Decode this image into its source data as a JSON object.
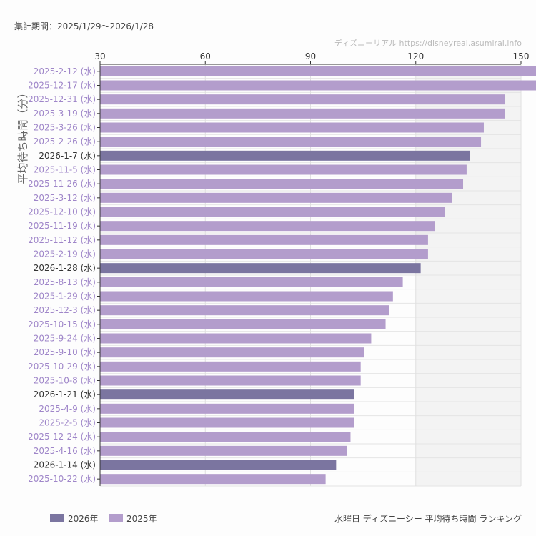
{
  "period_label": "集計期間：2025/1/29〜2026/1/28",
  "watermark": "ディズニーリアル https://disneyreal.asumirai.info",
  "footer_title": "水曜日 ディズニーシー 平均待ち時間 ランキング",
  "colors": {
    "2026年": "#7b75a0",
    "2025年": "#b39dcc",
    "label_2025": "#9f86c9",
    "label_2026": "#333333",
    "highlight_band": "#f3f3f3"
  },
  "chart_data": {
    "type": "bar",
    "orientation": "horizontal",
    "ylabel": "平均待ち時間（分）",
    "xlim": [
      30,
      150
    ],
    "xticks": [
      30,
      60,
      90,
      120,
      150
    ],
    "x_axis_position": "top",
    "grid": true,
    "legend": [
      {
        "name": "2026年",
        "color": "#7b75a0"
      },
      {
        "name": "2025年",
        "color": "#b39dcc"
      }
    ],
    "legend_placement": "bottom-left",
    "categories": [
      "2025-2-12 (水)",
      "2025-12-17 (水)",
      "2025-12-31 (水)",
      "2025-3-19 (水)",
      "2025-3-26 (水)",
      "2025-2-26 (水)",
      "2026-1-7 (水)",
      "2025-11-5 (水)",
      "2025-11-26 (水)",
      "2025-3-12 (水)",
      "2025-12-10 (水)",
      "2025-11-19 (水)",
      "2025-11-12 (水)",
      "2025-2-19 (水)",
      "2026-1-28 (水)",
      "2025-8-13 (水)",
      "2025-1-29 (水)",
      "2025-12-3 (水)",
      "2025-10-15 (水)",
      "2025-9-24 (水)",
      "2025-9-10 (水)",
      "2025-10-29 (水)",
      "2025-10-8 (水)",
      "2026-1-21 (水)",
      "2025-4-9 (水)",
      "2025-2-5 (水)",
      "2025-12-24 (水)",
      "2025-4-16 (水)",
      "2026-1-14 (水)",
      "2025-10-22 (水)"
    ],
    "values": [
      156,
      155,
      145.5,
      145.5,
      139.4,
      138.6,
      135.5,
      134.5,
      133.5,
      130.4,
      128.4,
      125.5,
      123.5,
      123.5,
      121.4,
      116.3,
      113.5,
      112.4,
      111.4,
      107.3,
      105.3,
      104.3,
      104.3,
      102.4,
      102.4,
      102.4,
      101.4,
      100.4,
      97.3,
      94.3
    ],
    "year": [
      "2025年",
      "2025年",
      "2025年",
      "2025年",
      "2025年",
      "2025年",
      "2026年",
      "2025年",
      "2025年",
      "2025年",
      "2025年",
      "2025年",
      "2025年",
      "2025年",
      "2026年",
      "2025年",
      "2025年",
      "2025年",
      "2025年",
      "2025年",
      "2025年",
      "2025年",
      "2025年",
      "2026年",
      "2025年",
      "2025年",
      "2025年",
      "2025年",
      "2026年",
      "2025年"
    ]
  }
}
